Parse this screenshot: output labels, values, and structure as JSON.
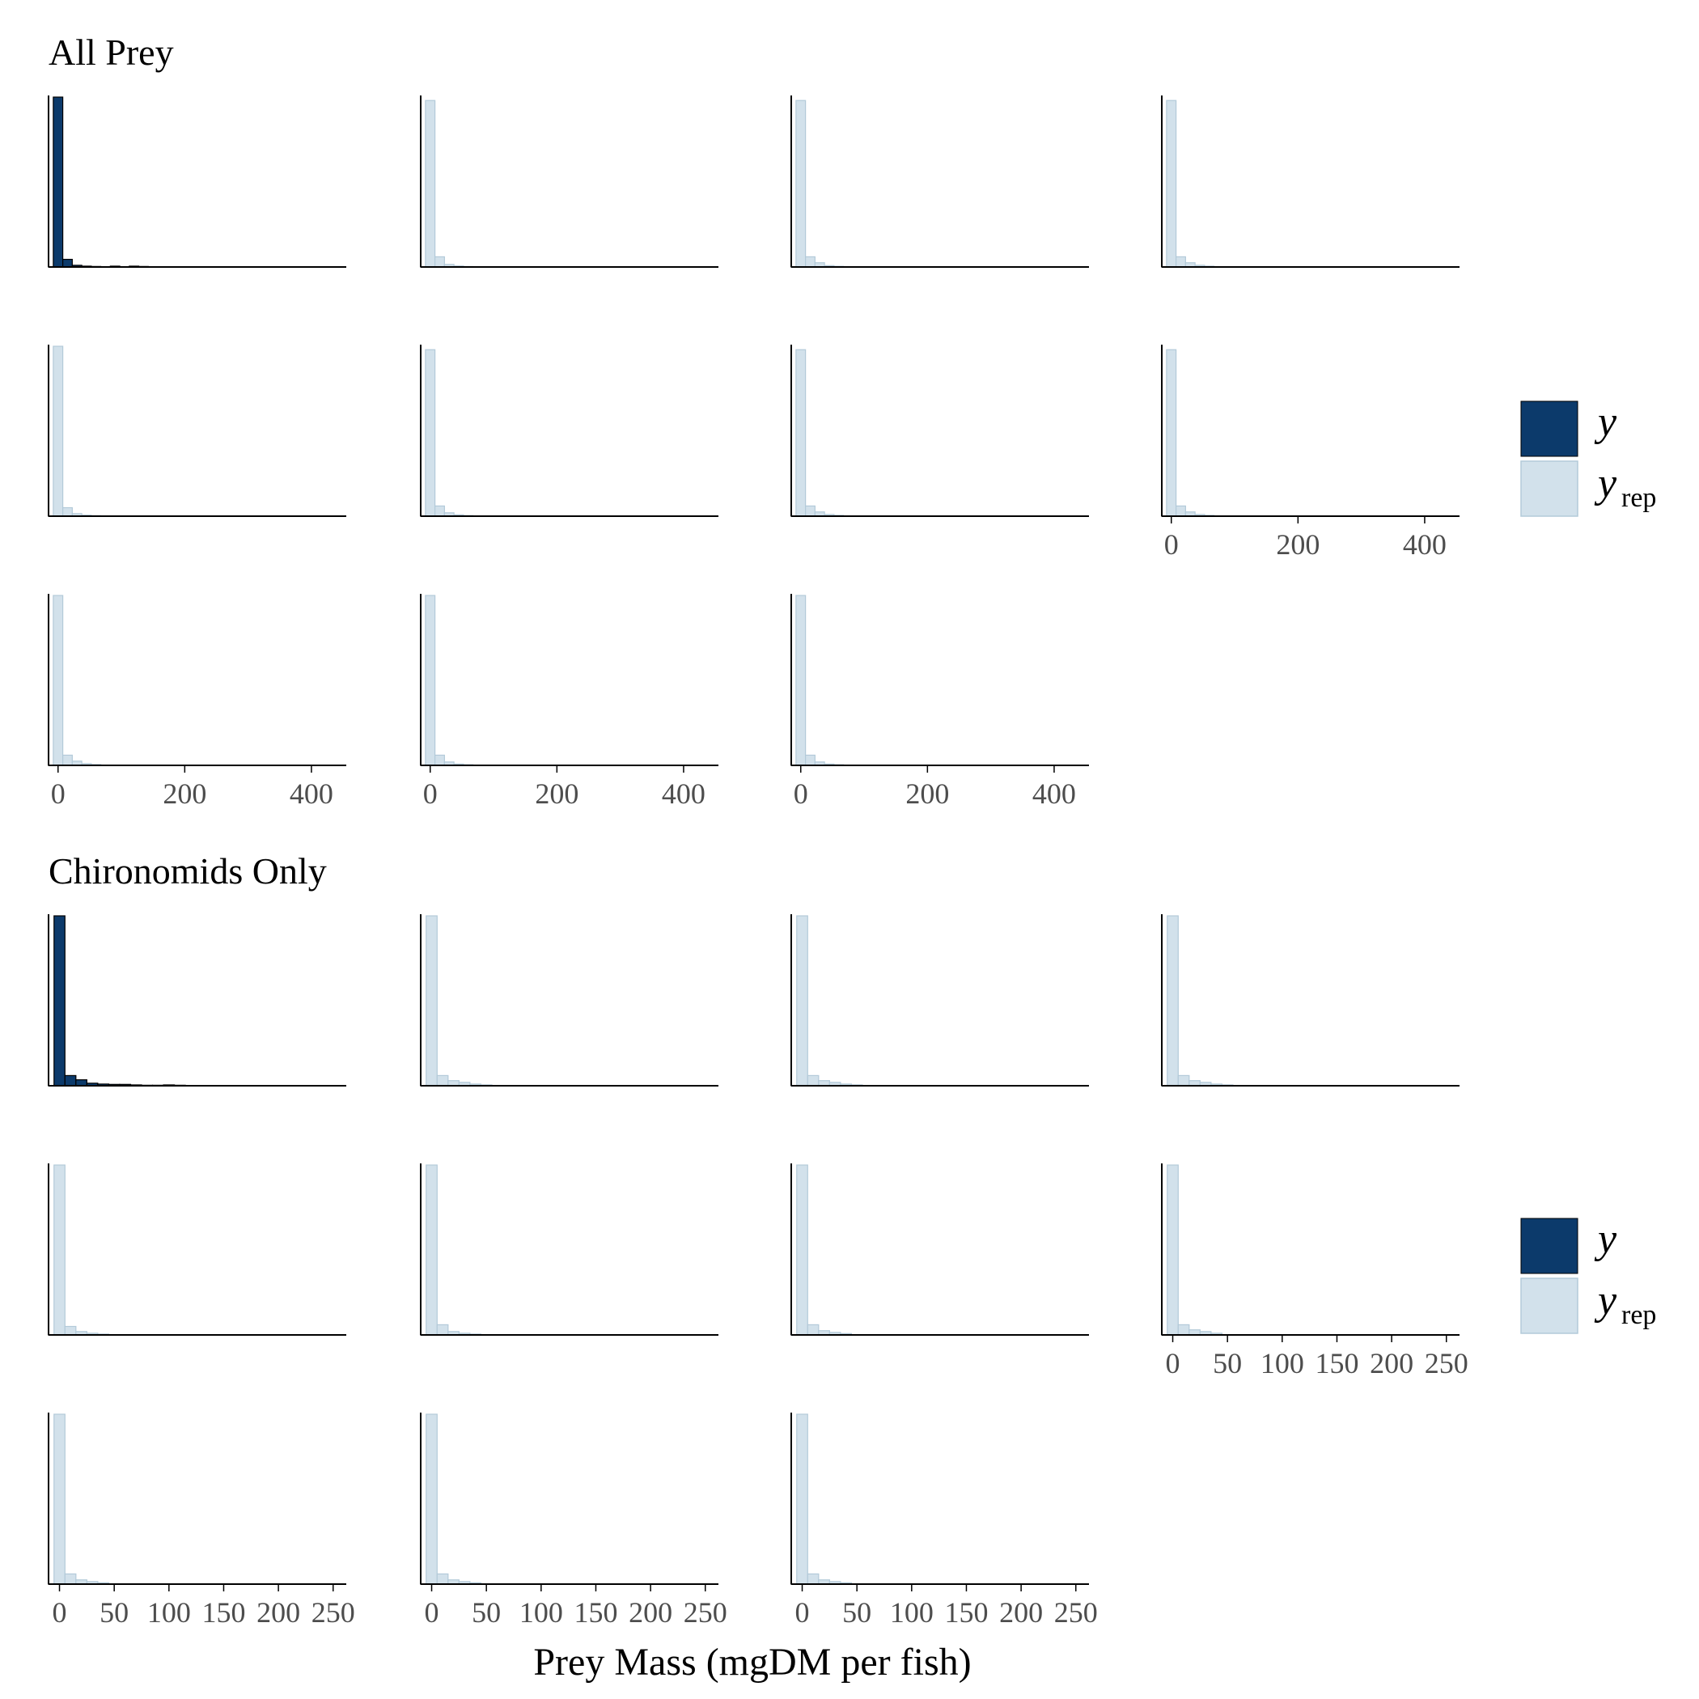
{
  "xlabel": "Prey Mass (mgDM per fish)",
  "legend": {
    "y_label": "y",
    "yrep_label": "y",
    "yrep_subscript": "rep"
  },
  "colors": {
    "y": "#0c3a6b",
    "yrep_fill": "#d2e1eb",
    "yrep_stroke": "#b3cad9",
    "axis": "#000000",
    "tick_text": "#4d4d4d"
  },
  "chart_data": [
    {
      "type": "bar",
      "title": "All Prey",
      "xlim": [
        -15,
        455
      ],
      "x_ticks": [
        "0",
        "200",
        "400"
      ],
      "x_tick_values": [
        0,
        200,
        400
      ],
      "bin_width": 15,
      "bin_start": -7.5,
      "panels": [
        {
          "series": "y",
          "counts": [
            100,
            4.5,
            1.0,
            0.5,
            0.3,
            0.2,
            0.5,
            0.2,
            0.5,
            0.3
          ]
        },
        {
          "series": "yrep",
          "counts": [
            98,
            6.0,
            1.5,
            0.6,
            0.3
          ]
        },
        {
          "series": "yrep",
          "counts": [
            98,
            6.0,
            2.5,
            0.8,
            0.4
          ]
        },
        {
          "series": "yrep",
          "counts": [
            98,
            6.0,
            2.5,
            1.0,
            0.5
          ]
        },
        {
          "series": "yrep",
          "counts": [
            100,
            5.0,
            1.5,
            0.6,
            0.3
          ]
        },
        {
          "series": "yrep",
          "counts": [
            98,
            6.0,
            2.0,
            0.8,
            0.4
          ]
        },
        {
          "series": "yrep",
          "counts": [
            98,
            6.0,
            2.5,
            1.0,
            0.5
          ]
        },
        {
          "series": "yrep",
          "counts": [
            98,
            6.0,
            2.5,
            1.0,
            0.5
          ]
        },
        {
          "series": "yrep",
          "counts": [
            100,
            6.0,
            2.5,
            1.0,
            0.5
          ]
        },
        {
          "series": "yrep",
          "counts": [
            100,
            6.0,
            2.0,
            0.8,
            0.4
          ]
        },
        {
          "series": "yrep",
          "counts": [
            100,
            6.0,
            2.0,
            0.8,
            0.4
          ]
        }
      ]
    },
    {
      "type": "bar",
      "title": "Chironomids Only",
      "xlim": [
        -10,
        262
      ],
      "x_ticks": [
        "0",
        "50",
        "100",
        "150",
        "200",
        "250"
      ],
      "x_tick_values": [
        0,
        50,
        100,
        150,
        200,
        250
      ],
      "bin_width": 10,
      "bin_start": -5,
      "panels": [
        {
          "series": "y",
          "counts": [
            100,
            6.0,
            3.5,
            1.5,
            1.0,
            0.8,
            0.8,
            0.5,
            0.3,
            0.3,
            0.5,
            0.3
          ]
        },
        {
          "series": "yrep",
          "counts": [
            100,
            6.0,
            3.0,
            2.0,
            1.0,
            0.5
          ]
        },
        {
          "series": "yrep",
          "counts": [
            100,
            6.0,
            3.0,
            2.0,
            1.0,
            0.5
          ]
        },
        {
          "series": "yrep",
          "counts": [
            100,
            6.0,
            3.0,
            2.0,
            1.0,
            0.5
          ]
        },
        {
          "series": "yrep",
          "counts": [
            100,
            5.0,
            2.0,
            1.0,
            0.5
          ]
        },
        {
          "series": "yrep",
          "counts": [
            100,
            6.0,
            2.0,
            1.0,
            0.5
          ]
        },
        {
          "series": "yrep",
          "counts": [
            100,
            6.0,
            2.5,
            1.5,
            0.8
          ]
        },
        {
          "series": "yrep",
          "counts": [
            100,
            6.0,
            3.0,
            2.0,
            1.0
          ]
        },
        {
          "series": "yrep",
          "counts": [
            100,
            6.0,
            2.5,
            1.5,
            0.8
          ]
        },
        {
          "series": "yrep",
          "counts": [
            100,
            6.0,
            2.5,
            1.5,
            0.8
          ]
        },
        {
          "series": "yrep",
          "counts": [
            100,
            6.0,
            2.5,
            1.5,
            0.8
          ]
        }
      ]
    }
  ]
}
